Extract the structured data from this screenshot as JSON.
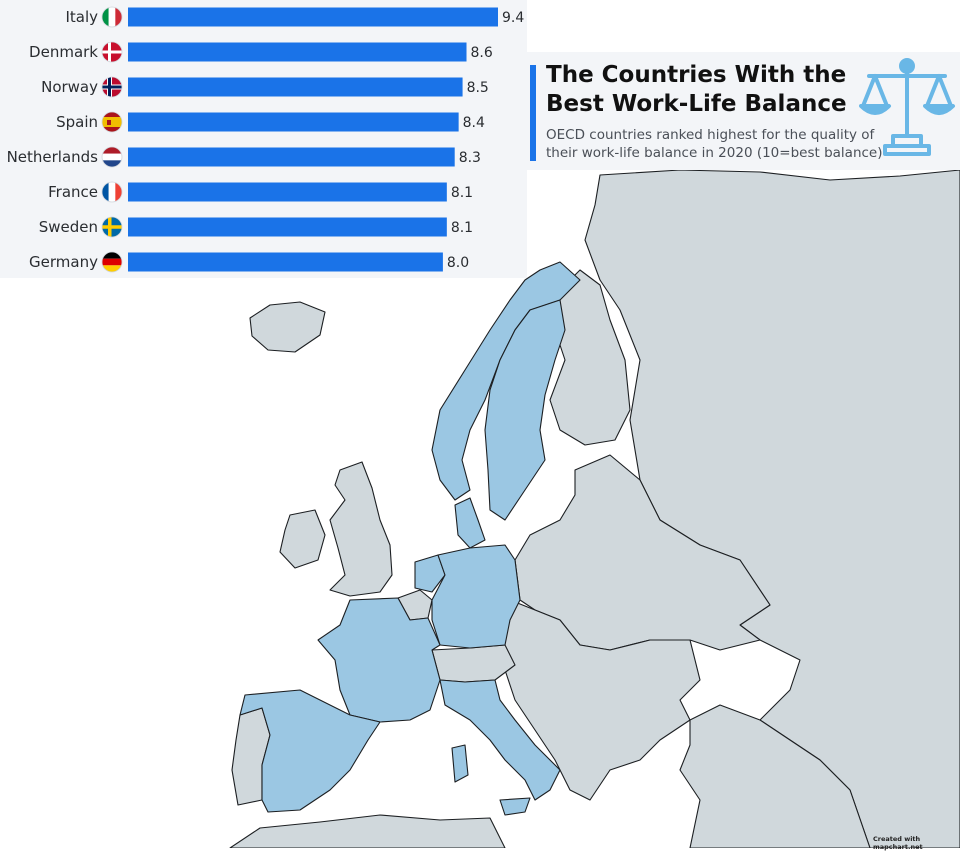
{
  "header": {
    "title_line1": "The Countries With the",
    "title_line2": "Best Work-Life Balance",
    "subtitle_line1": "OECD countries ranked highest for the quality of",
    "subtitle_line2": "their work-life balance in 2020 (10=best balance)"
  },
  "map": {
    "credit": "Created with mapchart.net",
    "highlight_color": "#9bc7e3",
    "base_color": "#d0d8dc",
    "sea_color": "#ffffff",
    "highlighted_countries": [
      "Italy",
      "Denmark",
      "Norway",
      "Spain",
      "Netherlands",
      "France",
      "Sweden",
      "Germany"
    ]
  },
  "colors": {
    "bar": "#1a73e8",
    "accent": "#1a73e8",
    "panel_bg": "#f3f5f8",
    "icon": "#69b7e6"
  },
  "chart_data": {
    "type": "bar",
    "orientation": "horizontal",
    "title": "",
    "xlabel": "",
    "ylabel": "",
    "xlim": [
      0,
      10
    ],
    "categories": [
      "Italy",
      "Denmark",
      "Norway",
      "Spain",
      "Netherlands",
      "France",
      "Sweden",
      "Germany"
    ],
    "values": [
      9.4,
      8.6,
      8.5,
      8.4,
      8.3,
      8.1,
      8.1,
      8.0
    ],
    "value_labels": [
      "9.4",
      "8.6",
      "8.5",
      "8.4",
      "8.3",
      "8.1",
      "8.1",
      "8.0"
    ],
    "flag_icons": [
      "italy-flag-icon",
      "denmark-flag-icon",
      "norway-flag-icon",
      "spain-flag-icon",
      "netherlands-flag-icon",
      "france-flag-icon",
      "sweden-flag-icon",
      "germany-flag-icon"
    ],
    "grid": false,
    "legend": "none"
  }
}
